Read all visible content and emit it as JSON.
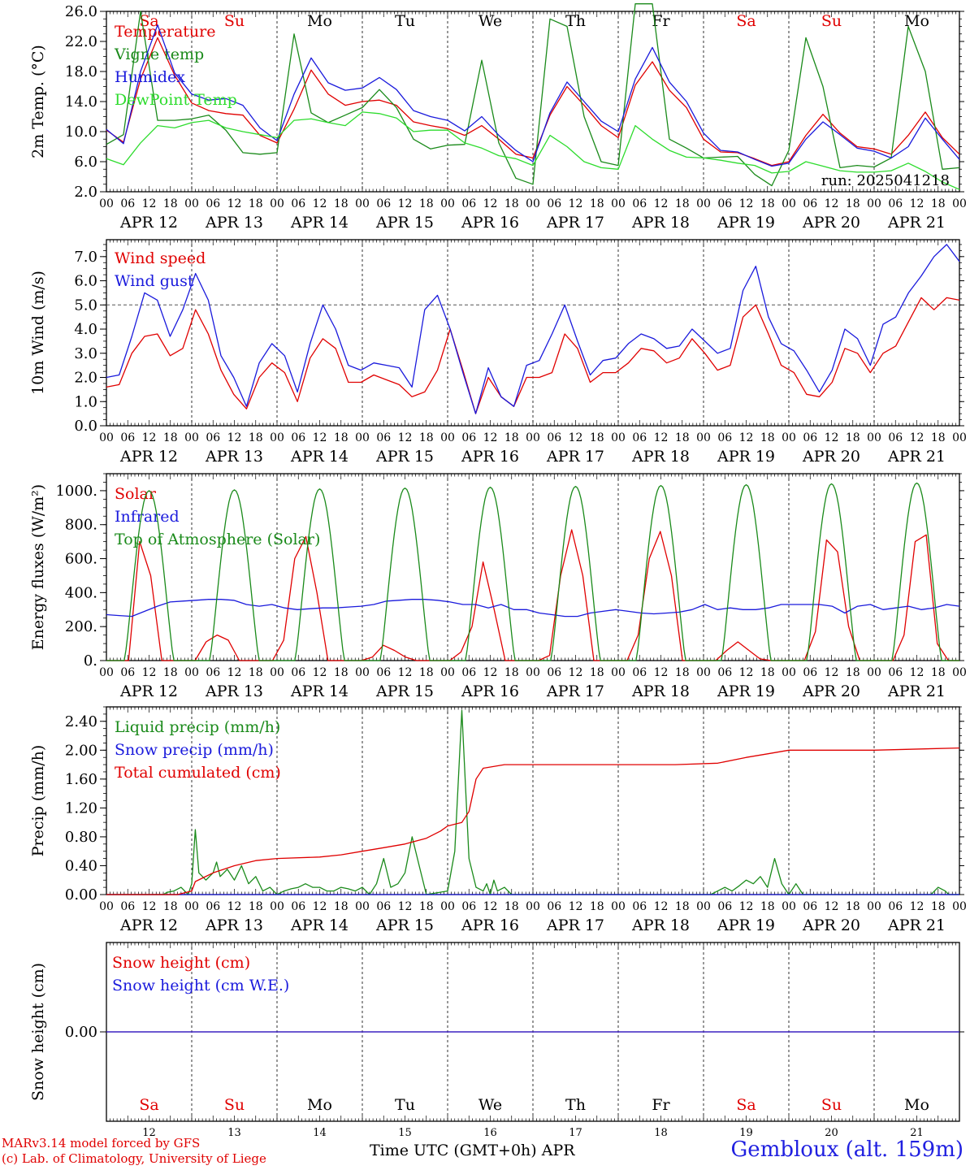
{
  "days": {
    "day_of_month": [
      "12",
      "13",
      "14",
      "15",
      "16",
      "17",
      "18",
      "19",
      "20",
      "21"
    ],
    "date_labels": [
      "APR 12",
      "APR 13",
      "APR 14",
      "APR 15",
      "APR 16",
      "APR 17",
      "APR 18",
      "APR 19",
      "APR 20",
      "APR 21"
    ],
    "weekdays": [
      "Sa",
      "Su",
      "Mo",
      "Tu",
      "We",
      "Th",
      "Fr",
      "Sa",
      "Su",
      "Mo"
    ],
    "weekday_colors": [
      "#e00000",
      "#e00000",
      "#000000",
      "#000000",
      "#000000",
      "#000000",
      "#000000",
      "#e00000",
      "#e00000",
      "#000000"
    ],
    "hour_ticks": [
      "00",
      "06",
      "12",
      "18"
    ],
    "final_hour": "00"
  },
  "run_label": "run: 2025041218",
  "footer": {
    "credit_line1": "MARv3.14 model forced by GFS",
    "credit_line2": "(c) Lab. of Climatology, University of Liege",
    "axis_title": "Time UTC (GMT+0h) APR",
    "station": "Gembloux (alt. 159m)"
  },
  "chart_data": [
    {
      "type": "line",
      "ylabel": "2m Temp. (°C)",
      "ylim": [
        2,
        26
      ],
      "yticks": [
        "2.0",
        "6.0",
        "10.0",
        "14.0",
        "18.0",
        "22.0",
        "26.0"
      ],
      "grid": false,
      "x_unit": "hours since APR 12 00 UTC, 6-hourly",
      "series": [
        {
          "name": "Temperature",
          "color": "#e00000",
          "values": [
            10.2,
            8.6,
            17,
            22.5,
            17.5,
            13.8,
            12.8,
            12.4,
            12.2,
            9.5,
            8.5,
            13,
            18.2,
            15,
            13.5,
            14,
            14.2,
            13.5,
            11.3,
            10.8,
            10.4,
            9.5,
            10.8,
            9,
            7,
            6.5,
            12.2,
            16,
            13.5,
            10.8,
            9.2,
            16.2,
            19.3,
            15.5,
            13.2,
            9,
            7.3,
            7.2,
            6.4,
            5.5,
            6,
            9.5,
            12.3,
            9.8,
            8,
            7.7,
            7,
            9.5,
            12.6,
            9.2,
            7
          ]
        },
        {
          "name": "Vigne temp",
          "color": "#1a8a1a",
          "values": [
            8.3,
            9.6,
            26,
            11.5,
            11.5,
            11.7,
            12.2,
            10.2,
            7.2,
            7,
            7.2,
            23,
            12.5,
            11.2,
            12.2,
            13.2,
            15.6,
            13.2,
            9,
            7.7,
            8.2,
            8.3,
            19.5,
            8.5,
            3.8,
            3,
            25,
            24,
            12,
            6,
            5.5,
            27,
            27,
            9,
            7.8,
            6.5,
            6.6,
            6.7,
            4.3,
            2.8,
            7.5,
            22.5,
            16,
            5.2,
            5.5,
            5.3,
            6.5,
            24,
            18,
            5,
            5.2
          ]
        },
        {
          "name": "Humidex",
          "color": "#1a1adc",
          "values": [
            10.3,
            8.4,
            18,
            24.2,
            17.8,
            15,
            14.2,
            14.4,
            13.5,
            10.5,
            8.8,
            15,
            19.8,
            16.5,
            15.5,
            15.8,
            17.2,
            15.6,
            12.8,
            12,
            11.5,
            10.1,
            12,
            9.5,
            7.5,
            6,
            12.5,
            16.6,
            14,
            11.4,
            10,
            17,
            21.2,
            16.6,
            14,
            9.8,
            7.5,
            7.3,
            6.3,
            5.4,
            5.8,
            9,
            11.3,
            9.6,
            7.8,
            7.4,
            6.5,
            8,
            11.8,
            9,
            6.3
          ]
        },
        {
          "name": "DewPoint Temp",
          "color": "#2ddc2d",
          "values": [
            6.4,
            5.6,
            8.5,
            10.8,
            10.5,
            11.2,
            11.5,
            10.5,
            10,
            9.6,
            9.2,
            11.5,
            11.7,
            11.2,
            10.8,
            12.6,
            12.4,
            11.8,
            10,
            10.2,
            10.2,
            8.5,
            7.8,
            6.8,
            6.4,
            5.5,
            9.5,
            8,
            6,
            5.2,
            5,
            10.8,
            9,
            7.5,
            6.6,
            6.5,
            6.2,
            5.8,
            5.5,
            4.5,
            4.7,
            6,
            5.4,
            4.8,
            4.6,
            4.6,
            4.8,
            5.8,
            4.7,
            3.3,
            2.3
          ]
        }
      ]
    },
    {
      "type": "line",
      "ylabel": "10m Wind (m/s)",
      "ylim": [
        0,
        7.7
      ],
      "yticks": [
        "0.0",
        "1.0",
        "2.0",
        "3.0",
        "4.0",
        "5.0",
        "6.0",
        "7.0"
      ],
      "reference_line": 5.0,
      "series": [
        {
          "name": "Wind speed",
          "color": "#e00000",
          "values": [
            1.6,
            1.7,
            3,
            3.7,
            3.8,
            2.9,
            3.2,
            4.8,
            3.8,
            2.3,
            1.3,
            0.7,
            2,
            2.6,
            2.2,
            1,
            2.8,
            3.6,
            3.2,
            1.8,
            1.8,
            2.1,
            1.9,
            1.7,
            1.2,
            1.4,
            2.3,
            4,
            2.3,
            0.5,
            2,
            1.2,
            0.8,
            2,
            2,
            2.2,
            3.8,
            3.2,
            1.8,
            2.2,
            2.2,
            2.6,
            3.2,
            3.1,
            2.6,
            2.8,
            3.6,
            3,
            2.3,
            2.5,
            4.5,
            5,
            3.8,
            2.5,
            2.2,
            1.3,
            1.2,
            1.8,
            3.2,
            3,
            2.2,
            3,
            3.3,
            4.3,
            5.3,
            4.8,
            5.3,
            5.2
          ]
        },
        {
          "name": "Wind gust",
          "color": "#1a1adc",
          "values": [
            2,
            2.1,
            3.7,
            5.5,
            5.2,
            3.7,
            4.8,
            6.3,
            5.2,
            2.9,
            2,
            0.8,
            2.6,
            3.4,
            2.9,
            1.4,
            3.4,
            5,
            4,
            2.5,
            2.3,
            2.6,
            2.5,
            2.4,
            1.6,
            4.8,
            5.4,
            4,
            2.2,
            0.5,
            2.4,
            1.2,
            0.8,
            2.5,
            2.7,
            3.8,
            5,
            3.5,
            2.1,
            2.7,
            2.8,
            3.4,
            3.8,
            3.6,
            3.2,
            3.3,
            4,
            3.5,
            3,
            3.2,
            5.6,
            6.6,
            4.5,
            3.4,
            3.1,
            2.3,
            1.4,
            2.3,
            4,
            3.6,
            2.5,
            4.2,
            4.5,
            5.5,
            6.2,
            7,
            7.5,
            6.8
          ]
        }
      ]
    },
    {
      "type": "line",
      "ylabel": "Energy fluxes (W/m²)",
      "ylim": [
        0,
        1100
      ],
      "yticks": [
        "0.",
        "200.",
        "400.",
        "600.",
        "800.",
        "1000."
      ],
      "series": [
        {
          "name": "Solar",
          "color": "#e00000",
          "values": [
            0,
            0,
            0,
            700,
            500,
            0,
            0,
            0,
            0,
            110,
            150,
            120,
            0,
            0,
            0,
            0,
            120,
            600,
            730,
            400,
            0,
            0,
            0,
            0,
            20,
            90,
            60,
            20,
            0,
            0,
            0,
            0,
            50,
            200,
            580,
            300,
            0,
            0,
            0,
            0,
            30,
            500,
            770,
            500,
            0,
            0,
            0,
            0,
            150,
            600,
            760,
            500,
            0,
            0,
            0,
            0,
            60,
            110,
            60,
            10,
            0,
            0,
            0,
            0,
            170,
            710,
            640,
            200,
            0,
            0,
            0,
            0,
            150,
            700,
            740,
            100,
            0,
            0
          ]
        },
        {
          "name": "Infrared",
          "color": "#1a1adc",
          "values": [
            270,
            265,
            260,
            290,
            320,
            345,
            350,
            355,
            360,
            360,
            355,
            330,
            320,
            330,
            310,
            300,
            305,
            310,
            310,
            315,
            320,
            330,
            350,
            355,
            360,
            360,
            355,
            345,
            330,
            330,
            310,
            330,
            300,
            300,
            280,
            270,
            260,
            260,
            280,
            290,
            300,
            290,
            280,
            275,
            280,
            285,
            300,
            330,
            300,
            310,
            300,
            300,
            310,
            330,
            330,
            330,
            330,
            320,
            280,
            320,
            330,
            300,
            310,
            320,
            300,
            310,
            330,
            320
          ]
        },
        {
          "name": "Top of Atmosphere (Solar)",
          "color": "#1a8a1a",
          "peaks": [
            1000,
            1005,
            1010,
            1015,
            1020,
            1025,
            1030,
            1035,
            1040,
            1045
          ]
        }
      ]
    },
    {
      "type": "line",
      "ylabel": "Precip (mm/h)",
      "ylim": [
        0,
        2.6
      ],
      "yticks": [
        "0.00",
        "0.40",
        "0.80",
        "1.20",
        "1.60",
        "2.00",
        "2.40"
      ],
      "series": [
        {
          "name": "Liquid precip (mm/h)",
          "color": "#1a8a1a",
          "points": [
            [
              0,
              0
            ],
            [
              16,
              0
            ],
            [
              17,
              0.03
            ],
            [
              19,
              0.05
            ],
            [
              21,
              0.1
            ],
            [
              22,
              0.05
            ],
            [
              23,
              0
            ],
            [
              24,
              0.15
            ],
            [
              25,
              0.9
            ],
            [
              26,
              0.3
            ],
            [
              28,
              0.2
            ],
            [
              30,
              0.3
            ],
            [
              31,
              0.45
            ],
            [
              32,
              0.25
            ],
            [
              34,
              0.35
            ],
            [
              36,
              0.2
            ],
            [
              38,
              0.4
            ],
            [
              40,
              0.15
            ],
            [
              42,
              0.25
            ],
            [
              44,
              0.05
            ],
            [
              46,
              0.1
            ],
            [
              48,
              0
            ],
            [
              50,
              0.05
            ],
            [
              52,
              0.08
            ],
            [
              54,
              0.1
            ],
            [
              56,
              0.15
            ],
            [
              58,
              0.1
            ],
            [
              60,
              0.1
            ],
            [
              62,
              0.05
            ],
            [
              64,
              0.05
            ],
            [
              66,
              0.1
            ],
            [
              68,
              0.08
            ],
            [
              70,
              0.05
            ],
            [
              72,
              0.1
            ],
            [
              74,
              0
            ],
            [
              76,
              0.15
            ],
            [
              78,
              0.5
            ],
            [
              80,
              0.1
            ],
            [
              82,
              0.15
            ],
            [
              84,
              0.3
            ],
            [
              86,
              0.8
            ],
            [
              88,
              0.4
            ],
            [
              90,
              0
            ],
            [
              96,
              0.05
            ],
            [
              98,
              0.6
            ],
            [
              100,
              2.55
            ],
            [
              102,
              0.5
            ],
            [
              104,
              0.1
            ],
            [
              106,
              0.05
            ],
            [
              107,
              0.15
            ],
            [
              108,
              0
            ],
            [
              109,
              0.2
            ],
            [
              110,
              0.05
            ],
            [
              112,
              0.1
            ],
            [
              114,
              0
            ],
            [
              170,
              0
            ],
            [
              172,
              0.05
            ],
            [
              174,
              0.1
            ],
            [
              176,
              0.05
            ],
            [
              178,
              0.12
            ],
            [
              180,
              0.2
            ],
            [
              182,
              0.15
            ],
            [
              184,
              0.25
            ],
            [
              186,
              0.1
            ],
            [
              188,
              0.5
            ],
            [
              190,
              0.15
            ],
            [
              192,
              0
            ],
            [
              194,
              0.15
            ],
            [
              196,
              0
            ],
            [
              232,
              0
            ],
            [
              234,
              0.1
            ],
            [
              236,
              0.05
            ],
            [
              237,
              0
            ],
            [
              240,
              0
            ]
          ]
        },
        {
          "name": "Snow precip (mm/h)",
          "color": "#1a1adc",
          "points": [
            [
              0,
              0
            ],
            [
              240,
              0
            ]
          ]
        },
        {
          "name": "Total cumulated (cm)",
          "color": "#e00000",
          "points": [
            [
              0,
              0
            ],
            [
              20,
              0
            ],
            [
              24,
              0.05
            ],
            [
              25,
              0.18
            ],
            [
              30,
              0.3
            ],
            [
              36,
              0.4
            ],
            [
              42,
              0.47
            ],
            [
              48,
              0.5
            ],
            [
              60,
              0.52
            ],
            [
              66,
              0.55
            ],
            [
              72,
              0.6
            ],
            [
              78,
              0.65
            ],
            [
              84,
              0.7
            ],
            [
              90,
              0.78
            ],
            [
              94,
              0.88
            ],
            [
              96,
              0.95
            ],
            [
              100,
              1
            ],
            [
              102,
              1.15
            ],
            [
              104,
              1.6
            ],
            [
              106,
              1.75
            ],
            [
              112,
              1.8
            ],
            [
              120,
              1.8
            ],
            [
              160,
              1.8
            ],
            [
              172,
              1.82
            ],
            [
              180,
              1.9
            ],
            [
              186,
              1.95
            ],
            [
              192,
              2
            ],
            [
              216,
              2
            ],
            [
              240,
              2.03
            ]
          ]
        }
      ]
    },
    {
      "type": "line",
      "ylabel": "Snow height (cm)",
      "ylim": [
        -0.01,
        0.01
      ],
      "yticks": [
        "0.00"
      ],
      "series": [
        {
          "name": "Snow height (cm)",
          "color": "#e00000",
          "points": [
            [
              0,
              0
            ],
            [
              240,
              0
            ]
          ]
        },
        {
          "name": "Snow height (cm W.E.)",
          "color": "#1a1adc",
          "points": [
            [
              0,
              0
            ],
            [
              240,
              0
            ]
          ]
        }
      ]
    }
  ]
}
